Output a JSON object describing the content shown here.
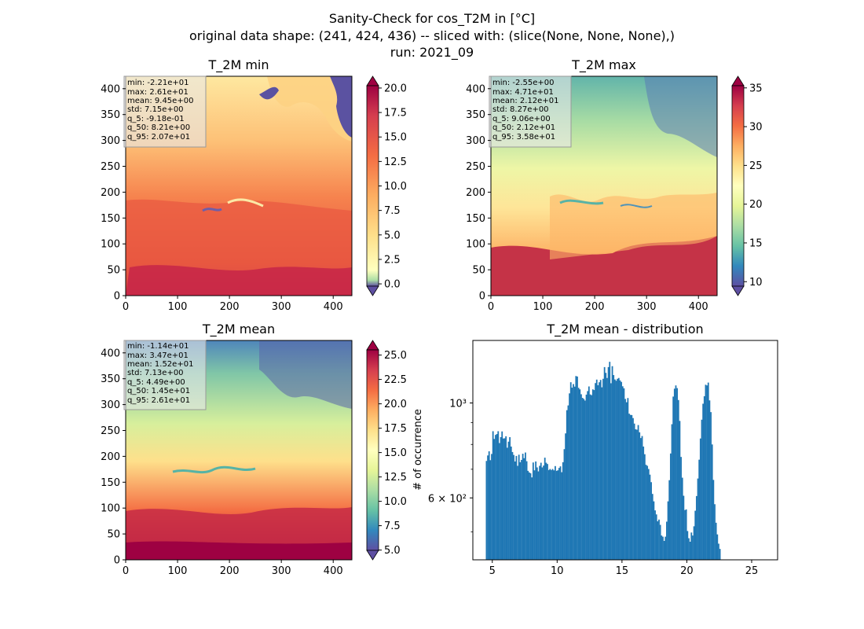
{
  "figure": {
    "title_lines": [
      "Sanity-Check for cos_T2M in [°C]",
      "original data shape: (241, 424, 436) -- sliced with: (slice(None, None, None),)",
      "run: 2021_09"
    ]
  },
  "chart_data": [
    {
      "type": "heatmap",
      "title": "T_2M min",
      "xlim": [
        0,
        436
      ],
      "ylim": [
        0,
        424
      ],
      "x_ticks": [
        "0",
        "100",
        "200",
        "300",
        "400"
      ],
      "y_ticks": [
        "0",
        "50",
        "100",
        "150",
        "200",
        "250",
        "300",
        "350",
        "400"
      ],
      "colorbar": {
        "ticks": [
          "0.0",
          "2.5",
          "5.0",
          "7.5",
          "10.0",
          "12.5",
          "15.0",
          "17.5",
          "20.0"
        ],
        "range": [
          -1.2,
          21.2
        ],
        "colormap": "Spectral_r"
      },
      "stats": [
        "min: -2.21e+01",
        "max: 2.61e+01",
        "mean: 9.45e+00",
        "std: 7.15e+00",
        "q_5: -9.18e-01",
        "q_50: 8.21e+00",
        "q_95: 2.07e+01"
      ]
    },
    {
      "type": "heatmap",
      "title": "T_2M max",
      "xlim": [
        0,
        436
      ],
      "ylim": [
        0,
        424
      ],
      "x_ticks": [
        "0",
        "100",
        "200",
        "300",
        "400"
      ],
      "y_ticks": [
        "0",
        "50",
        "100",
        "150",
        "200",
        "250",
        "300",
        "350",
        "400"
      ],
      "colorbar": {
        "ticks": [
          "10",
          "15",
          "20",
          "25",
          "30",
          "35"
        ],
        "range": [
          8.2,
          36.5
        ],
        "colormap": "Spectral_r"
      },
      "stats": [
        "min: -2.55e+00",
        "max: 4.71e+01",
        "mean: 2.12e+01",
        "std: 8.27e+00",
        "q_5: 9.06e+00",
        "q_50: 2.12e+01",
        "q_95: 3.58e+01"
      ]
    },
    {
      "type": "heatmap",
      "title": "T_2M mean",
      "xlim": [
        0,
        436
      ],
      "ylim": [
        0,
        424
      ],
      "x_ticks": [
        "0",
        "100",
        "200",
        "300",
        "400"
      ],
      "y_ticks": [
        "0",
        "50",
        "100",
        "150",
        "200",
        "250",
        "300",
        "350",
        "400"
      ],
      "colorbar": {
        "ticks": [
          "5.0",
          "7.5",
          "10.0",
          "12.5",
          "15.0",
          "17.5",
          "20.0",
          "22.5",
          "25.0"
        ],
        "range": [
          4.0,
          26.5
        ],
        "colormap": "Spectral_r",
        "label": "# of occurrence"
      },
      "stats": [
        "min: -1.14e+01",
        "max: 3.47e+01",
        "mean: 1.52e+01",
        "std: 7.13e+00",
        "q_5: 4.49e+00",
        "q_50: 1.45e+01",
        "q_95: 2.61e+01"
      ]
    },
    {
      "type": "bar",
      "title": "T_2M mean - distribution",
      "xlim": [
        3.5,
        27.0
      ],
      "x_ticks": [
        "5",
        "10",
        "15",
        "20",
        "25"
      ],
      "y_scale": "log",
      "ylim": [
        430,
        1400
      ],
      "y_tick_labels": [
        "10³",
        "6 × 10²"
      ],
      "bin_start": 4.5,
      "bin_width": 0.1,
      "color": "#1f77b4",
      "values": [
        732,
        754,
        771,
        735,
        760,
        859,
        824,
        842,
        846,
        859,
        806,
        832,
        858,
        826,
        827,
        836,
        786,
        812,
        832,
        791,
        768,
        756,
        730,
        752,
        713,
        757,
        727,
        736,
        761,
        743,
        766,
        731,
        694,
        688,
        685,
        670,
        726,
        696,
        730,
        707,
        692,
        713,
        725,
        707,
        714,
        745,
        725,
        720,
        697,
        701,
        697,
        701,
        696,
        712,
        694,
        696,
        705,
        711,
        689,
        727,
        780,
        849,
        962,
        987,
        1053,
        1118,
        1086,
        1107,
        1092,
        1156,
        1153,
        1085,
        1076,
        1048,
        1028,
        1022,
        1013,
        1046,
        1066,
        1093,
        1047,
        1043,
        1076,
        1072,
        1113,
        1134,
        1100,
        1118,
        1132,
        1088,
        1139,
        1213,
        1176,
        1144,
        1213,
        1248,
        1112,
        1219,
        1162,
        1135,
        1127,
        1139,
        1144,
        1129,
        1120,
        1094,
        1082,
        1022,
        1004,
        1027,
        944,
        938,
        937,
        922,
        895,
        868,
        866,
        888,
        854,
        828,
        837,
        791,
        759,
        717,
        713,
        701,
        680,
        653,
        613,
        589,
        561,
        549,
        529,
        534,
        519,
        490,
        487,
        476,
        487,
        528,
        589,
        660,
        762,
        892,
        1035,
        1080,
        1099,
        1083,
        1016,
        908,
        748,
        669,
        607,
        562,
        564,
        502,
        483,
        474,
        498,
        490,
        515,
        560,
        606,
        666,
        737,
        826,
        914,
        996,
        1037,
        1103,
        1099,
        1116,
        1014,
        952,
        800,
        661,
        580,
        525,
        493,
        469,
        456
      ]
    }
  ]
}
